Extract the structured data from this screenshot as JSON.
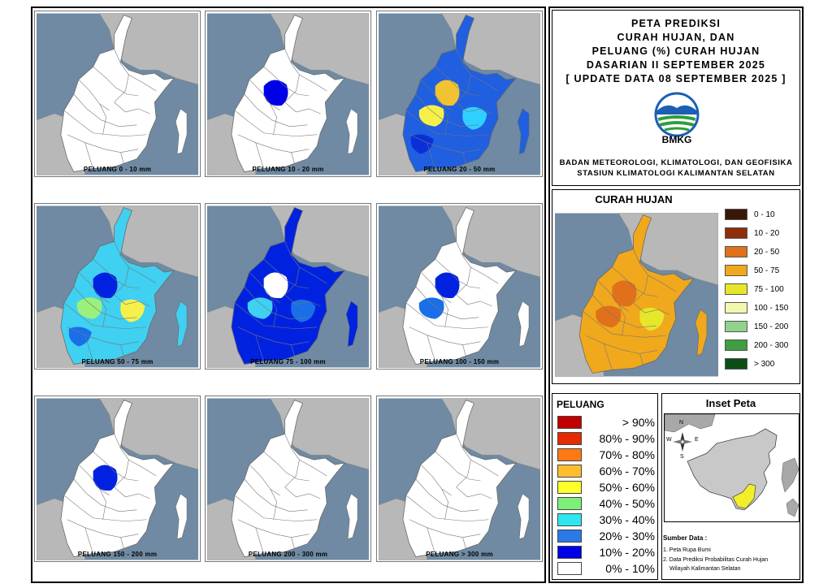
{
  "panels": [
    {
      "caption": "PELUANG 0 - 10 mm",
      "fill": "#ffffff",
      "blobs": []
    },
    {
      "caption": "PELUANG 10 - 20 mm",
      "fill": "#ffffff",
      "blobs": [
        "#0000e6"
      ]
    },
    {
      "caption": "PELUANG 20 - 50 mm",
      "fill": "#1f5fe0",
      "blobs": [
        "#f2c330",
        "#f7f04a",
        "#2fd0ff",
        "#0a2fd6"
      ]
    },
    {
      "caption": "PELUANG 50 - 75 mm",
      "fill": "#3fd0f2",
      "blobs": [
        "#0022e0",
        "#9af07a",
        "#f6f04a",
        "#1a6fe8"
      ]
    },
    {
      "caption": "PELUANG 75 - 100 mm",
      "fill": "#0022e0",
      "blobs": [
        "#ffffff",
        "#3fd0f2",
        "#1a6fe8"
      ]
    },
    {
      "caption": "PELUANG 100 - 150 mm",
      "fill": "#ffffff",
      "blobs": [
        "#0022e0",
        "#1a6fe8"
      ]
    },
    {
      "caption": "PELUANG 150 - 200 mm",
      "fill": "#ffffff",
      "blobs": [
        "#0022e0"
      ]
    },
    {
      "caption": "PELUANG 200 - 300 mm",
      "fill": "#ffffff",
      "blobs": []
    },
    {
      "caption": "PELUANG > 300 mm",
      "fill": "#ffffff",
      "blobs": []
    }
  ],
  "title": {
    "lines": [
      "PETA PREDIKSI",
      "CURAH HUJAN, DAN",
      "PELUANG (%) CURAH HUJAN",
      "DASARIAN II SEPTEMBER 2025",
      "[ UPDATE DATA 08 SEPTEMBER 2025 ]"
    ],
    "logo_text": "BMKG",
    "org_lines": [
      "BADAN METEOROLOGI, KLIMATOLOGI, DAN GEOFISIKA",
      "STASIUN KLIMATOLOGI KALIMANTAN SELATAN"
    ]
  },
  "curah_hujan": {
    "title": "CURAH HUJAN",
    "legend": [
      {
        "label": "0 - 10",
        "color": "#3a1608"
      },
      {
        "label": "10 - 20",
        "color": "#8f2e08"
      },
      {
        "label": "20 - 50",
        "color": "#e0701c"
      },
      {
        "label": "50 - 75",
        "color": "#f0a81c"
      },
      {
        "label": "75 - 100",
        "color": "#e6e62a"
      },
      {
        "label": "100 - 150",
        "color": "#f2f7b0"
      },
      {
        "label": "150 - 200",
        "color": "#8fd48a"
      },
      {
        "label": "200 - 300",
        "color": "#3f9e3f"
      },
      {
        "label": "> 300",
        "color": "#0c4d16"
      }
    ]
  },
  "peluang": {
    "title": "PELUANG",
    "legend": [
      {
        "label": "> 90%",
        "color": "#c00000"
      },
      {
        "label": "80% - 90%",
        "color": "#e62a00"
      },
      {
        "label": "70% - 80%",
        "color": "#ff7a12"
      },
      {
        "label": "60% - 70%",
        "color": "#ffbd2e"
      },
      {
        "label": "50% - 60%",
        "color": "#ffff2a"
      },
      {
        "label": "40% - 50%",
        "color": "#7ef07a"
      },
      {
        "label": "30% - 40%",
        "color": "#2ee6ee"
      },
      {
        "label": "20% - 30%",
        "color": "#2a7ae6"
      },
      {
        "label": "10% - 20%",
        "color": "#0000e6"
      },
      {
        "label": "0% - 10%",
        "color": "#ffffff"
      }
    ]
  },
  "inset": {
    "title": "Inset Peta",
    "compass": {
      "n": "N",
      "s": "S",
      "e": "E",
      "w": "W"
    },
    "source_title": "Sumber Data :",
    "sources": [
      "1. Peta Rupa Bumi",
      "2. Data Prediksi Probabilitas Curah Hujan",
      "Wilayah Kalimantan Selatan"
    ]
  },
  "colors": {
    "sea": "#6f8aa2",
    "land": "#b8b8b8",
    "border": "#6a6a6a",
    "highlight": "#f2ee2a"
  }
}
